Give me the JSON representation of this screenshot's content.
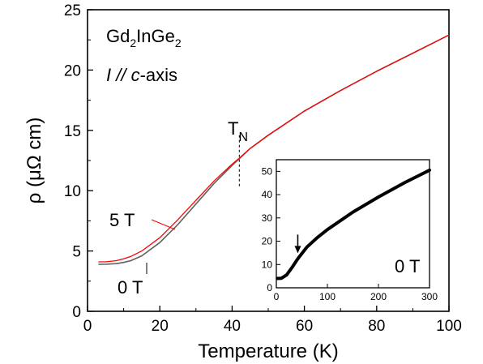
{
  "chart_data": [
    {
      "type": "line",
      "xlabel": "Temperature (K)",
      "ylabel": "ρ (μΩ cm)",
      "xlim": [
        0,
        100
      ],
      "ylim": [
        0,
        25
      ],
      "xticks": [
        "0",
        "20",
        "40",
        "60",
        "80",
        "100"
      ],
      "yticks": [
        "0",
        "5",
        "10",
        "15",
        "20",
        "25"
      ],
      "annotations": {
        "compound_main": "Gd",
        "compound_sub1": "2",
        "compound_mid": "InGe",
        "compound_sub2": "2",
        "orient_I": "I",
        "orient_par": " // ",
        "orient_c": "c",
        "orient_rest": "-axis",
        "tn_main": "T",
        "tn_sub": "N",
        "label_5T": "5 T",
        "label_0T": "0 T"
      },
      "transition_temperature": 42,
      "colors": {
        "5 T": "#ff0000",
        "0 T": "#606060"
      },
      "series": [
        {
          "name": "5 T",
          "x": [
            3,
            5,
            8,
            10,
            12,
            15,
            20,
            25,
            30,
            35,
            40,
            42,
            45,
            50,
            55,
            60,
            70,
            80,
            90,
            100
          ],
          "values": [
            4.1,
            4.1,
            4.2,
            4.35,
            4.55,
            5.0,
            6.1,
            7.6,
            9.2,
            10.8,
            12.2,
            12.7,
            13.5,
            14.6,
            15.6,
            16.6,
            18.3,
            19.9,
            21.4,
            22.9
          ]
        },
        {
          "name": "0 T",
          "x": [
            3,
            5,
            8,
            10,
            12,
            15,
            20,
            25,
            30,
            35,
            40,
            42,
            45,
            50,
            55,
            60,
            70,
            80,
            90,
            100
          ],
          "values": [
            3.9,
            3.9,
            3.95,
            4.05,
            4.2,
            4.6,
            5.7,
            7.2,
            8.9,
            10.6,
            12.1,
            12.65,
            13.5,
            14.6,
            15.6,
            16.6,
            18.3,
            19.9,
            21.4,
            22.9
          ]
        }
      ]
    },
    {
      "type": "line",
      "xlim": [
        0,
        300
      ],
      "ylim": [
        0,
        55
      ],
      "xticks": [
        "0",
        "100",
        "200",
        "300"
      ],
      "yticks": [
        "0",
        "10",
        "20",
        "30",
        "40",
        "50"
      ],
      "label": "0 T",
      "arrow_at_x": 42,
      "series": [
        {
          "name": "0 T",
          "x": [
            2,
            10,
            20,
            30,
            42,
            60,
            80,
            100,
            150,
            200,
            250,
            300
          ],
          "values": [
            4,
            4.1,
            5.5,
            8.5,
            12.5,
            17.5,
            21.5,
            25,
            32.5,
            39,
            45,
            50.5
          ]
        }
      ]
    }
  ]
}
